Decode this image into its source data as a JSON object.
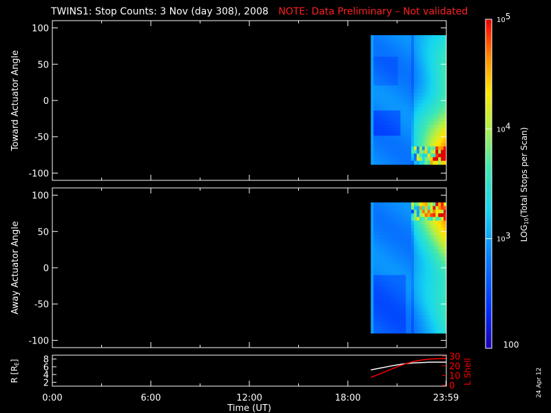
{
  "header": {
    "title": "TWINS1: Stop Counts:  3 Nov (day 308), 2008",
    "note": "NOTE: Data Preliminary – Not validated"
  },
  "footer": {
    "datestamp": "24 Apr 12"
  },
  "colors": {
    "background": "#000000",
    "axis": "#ffffff",
    "note": "#ff2020",
    "lshell": "#ff0000",
    "r_curve": "#ffffff"
  },
  "chart_data": [
    {
      "type": "heatmap",
      "panel": "toward",
      "ylabel": "Toward Actuator Angle",
      "ylim": [
        -110,
        110
      ],
      "yticks": [
        100,
        50,
        0,
        -50,
        -100
      ],
      "xlim": [
        0,
        24
      ],
      "data_extent_hours": [
        19.4,
        24
      ],
      "data_extent_angle": [
        -88,
        90
      ],
      "description_of_values": "log10 stop counts per scan; low (~10^2.5–10^3) over most of the block, rising to ~10^4.5–10^5 toward the bottom right after ~22:00 UT"
    },
    {
      "type": "heatmap",
      "panel": "away",
      "ylabel": "Away Actuator Angle",
      "ylim": [
        -110,
        110
      ],
      "yticks": [
        100,
        50,
        0,
        -50,
        -100
      ],
      "xlim": [
        0,
        24
      ],
      "data_extent_hours": [
        19.4,
        24
      ],
      "data_extent_angle": [
        -90,
        90
      ],
      "description_of_values": "log10 stop counts per scan; low over most of the block, rising to ~10^4.5–10^5 toward the top right after ~22:00 UT"
    },
    {
      "type": "line",
      "panel": "orbit",
      "ylabel": "R [R",
      "ylabel_sub": "E",
      "ylabel_end": "]",
      "yticks_left": [
        8,
        6,
        4,
        2
      ],
      "ylim_left": [
        1,
        9
      ],
      "ylabel_right": "L Shell",
      "yticks_right": [
        30,
        20,
        10,
        0
      ],
      "ylim_right": [
        -1,
        31
      ],
      "x_tick_labels": [
        "0:00",
        "6:00",
        "12:00",
        "18:00",
        "23:59"
      ],
      "x_tick_hours": [
        0,
        6,
        12,
        18,
        23.98
      ],
      "xlabel": "Time (UT)",
      "series": [
        {
          "axis": "left",
          "x": [
            19.4,
            20.0,
            20.5,
            21.0,
            21.5,
            22.0,
            22.5,
            23.0,
            23.5,
            24.0
          ],
          "y": [
            5.2,
            5.7,
            6.1,
            6.5,
            6.8,
            7.0,
            7.1,
            7.2,
            7.2,
            7.2
          ]
        },
        {
          "axis": "right",
          "x": [
            19.4,
            20.0,
            20.5,
            21.0,
            21.5,
            22.0,
            22.5,
            23.0,
            23.5,
            24.0
          ],
          "y": [
            8,
            12,
            15.5,
            19,
            22,
            24.5,
            26,
            27,
            27.4,
            27.5
          ]
        }
      ]
    }
  ],
  "colorbar": {
    "label_pre": "LOG",
    "label_sub": "10",
    "label_post": "(Total Stops per Scan)",
    "ticks": [
      {
        "base": "10",
        "exp": "5",
        "value": 5
      },
      {
        "base": "10",
        "exp": "4",
        "value": 4
      },
      {
        "base": "10",
        "exp": "3",
        "value": 3
      }
    ],
    "bottom_label": "100",
    "range_log": [
      2,
      5
    ]
  }
}
